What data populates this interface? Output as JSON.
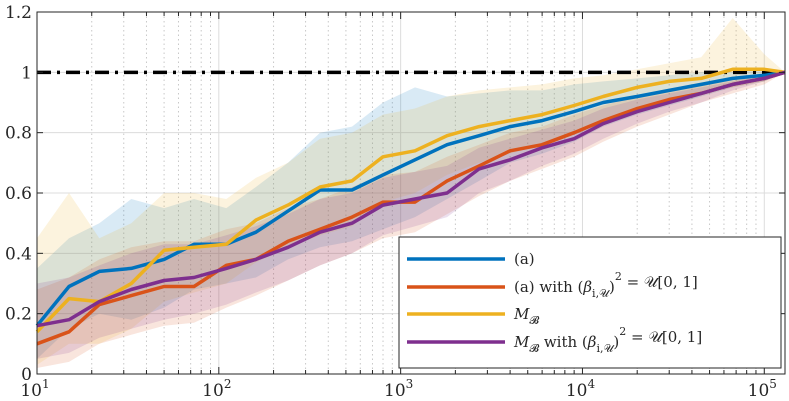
{
  "chart_data": {
    "type": "line",
    "title": "",
    "xlabel": "",
    "ylabel": "",
    "xscale": "log",
    "xlim": [
      10,
      130000
    ],
    "ylim": [
      0,
      1.2
    ],
    "grid": true,
    "legend_position": "bottom-right",
    "reference_line": {
      "y": 1,
      "style": "dash-dot",
      "color": "#000000"
    },
    "x_ticks": [
      {
        "value": 10,
        "base": "10",
        "exp": "1"
      },
      {
        "value": 100,
        "base": "10",
        "exp": "2"
      },
      {
        "value": 1000,
        "base": "10",
        "exp": "3"
      },
      {
        "value": 10000,
        "base": "10",
        "exp": "4"
      },
      {
        "value": 100000,
        "base": "10",
        "exp": "5"
      }
    ],
    "y_ticks": [
      {
        "value": 0,
        "label": "0"
      },
      {
        "value": 0.2,
        "label": "0.2"
      },
      {
        "value": 0.4,
        "label": "0.4"
      },
      {
        "value": 0.6,
        "label": "0.6"
      },
      {
        "value": 0.8,
        "label": "0.8"
      },
      {
        "value": 1,
        "label": "1"
      },
      {
        "value": 1.2,
        "label": "1.2"
      }
    ],
    "x": [
      10,
      15,
      22,
      33,
      50,
      73,
      110,
      160,
      240,
      360,
      540,
      800,
      1200,
      1800,
      2700,
      4000,
      6000,
      9000,
      13000,
      20000,
      30000,
      45000,
      67000,
      100000,
      130000
    ],
    "series": [
      {
        "name": "(a)",
        "legend_parts": [
          "(a)"
        ],
        "color": "#0072BD",
        "values": [
          0.16,
          0.29,
          0.34,
          0.35,
          0.38,
          0.43,
          0.43,
          0.47,
          0.54,
          0.61,
          0.61,
          0.66,
          0.71,
          0.76,
          0.79,
          0.82,
          0.84,
          0.87,
          0.9,
          0.92,
          0.94,
          0.96,
          0.98,
          0.99,
          1.0
        ],
        "upper": [
          0.35,
          0.45,
          0.5,
          0.58,
          0.55,
          0.58,
          0.55,
          0.62,
          0.7,
          0.8,
          0.82,
          0.9,
          0.95,
          0.92,
          0.93,
          0.94,
          0.94,
          0.96,
          0.97,
          0.98,
          0.99,
          1.0,
          1.0,
          1.01,
          1.0
        ],
        "lower": [
          0.05,
          0.15,
          0.2,
          0.18,
          0.22,
          0.28,
          0.3,
          0.32,
          0.38,
          0.42,
          0.44,
          0.48,
          0.52,
          0.58,
          0.64,
          0.7,
          0.73,
          0.77,
          0.82,
          0.86,
          0.89,
          0.92,
          0.95,
          0.97,
          1.0
        ]
      },
      {
        "name": "(a) with (β_{i,U})^2 = U[0,1]",
        "legend_parts": [
          "(a) with (",
          "β",
          "i,𝒰",
          ")",
          "2",
          " = 𝒰[0, 1]"
        ],
        "color": "#D95319",
        "values": [
          0.1,
          0.14,
          0.23,
          0.26,
          0.29,
          0.29,
          0.36,
          0.38,
          0.44,
          0.48,
          0.52,
          0.57,
          0.57,
          0.64,
          0.69,
          0.74,
          0.76,
          0.8,
          0.84,
          0.88,
          0.91,
          0.93,
          0.96,
          0.98,
          1.0
        ],
        "upper": [
          0.28,
          0.32,
          0.38,
          0.42,
          0.44,
          0.44,
          0.48,
          0.5,
          0.55,
          0.58,
          0.62,
          0.66,
          0.67,
          0.72,
          0.76,
          0.8,
          0.82,
          0.86,
          0.89,
          0.92,
          0.94,
          0.96,
          0.98,
          0.99,
          1.0
        ],
        "lower": [
          0.02,
          0.04,
          0.1,
          0.13,
          0.16,
          0.17,
          0.22,
          0.26,
          0.31,
          0.36,
          0.4,
          0.45,
          0.47,
          0.53,
          0.59,
          0.64,
          0.68,
          0.72,
          0.77,
          0.82,
          0.86,
          0.9,
          0.93,
          0.96,
          1.0
        ]
      },
      {
        "name": "M_B",
        "legend_parts": [
          "M",
          "𝓑"
        ],
        "color": "#EDB120",
        "values": [
          0.14,
          0.25,
          0.24,
          0.3,
          0.41,
          0.42,
          0.43,
          0.51,
          0.56,
          0.62,
          0.64,
          0.72,
          0.74,
          0.79,
          0.82,
          0.84,
          0.86,
          0.89,
          0.92,
          0.95,
          0.97,
          0.98,
          1.01,
          1.01,
          1.0
        ],
        "upper": [
          0.45,
          0.6,
          0.45,
          0.5,
          0.6,
          0.6,
          0.58,
          0.65,
          0.7,
          0.78,
          0.8,
          0.86,
          0.88,
          0.92,
          0.94,
          0.95,
          0.96,
          0.98,
          0.99,
          1.01,
          1.03,
          1.05,
          1.18,
          1.06,
          1.0
        ],
        "lower": [
          0.03,
          0.1,
          0.1,
          0.15,
          0.24,
          0.27,
          0.3,
          0.37,
          0.42,
          0.46,
          0.49,
          0.57,
          0.6,
          0.66,
          0.7,
          0.73,
          0.76,
          0.8,
          0.84,
          0.88,
          0.91,
          0.93,
          0.95,
          0.97,
          1.0
        ]
      },
      {
        "name": "M_B with (β_{i,U})^2 = U[0,1]",
        "legend_parts": [
          "M",
          "𝓑",
          " with (",
          "β",
          "i,𝒰",
          ")",
          "2",
          " = 𝒰[0, 1]"
        ],
        "color": "#7E2F8E",
        "values": [
          0.16,
          0.18,
          0.24,
          0.28,
          0.31,
          0.32,
          0.35,
          0.38,
          0.42,
          0.47,
          0.5,
          0.56,
          0.58,
          0.6,
          0.68,
          0.71,
          0.75,
          0.78,
          0.83,
          0.87,
          0.9,
          0.93,
          0.96,
          0.98,
          1.0
        ],
        "upper": [
          0.3,
          0.32,
          0.36,
          0.4,
          0.43,
          0.43,
          0.46,
          0.49,
          0.53,
          0.58,
          0.6,
          0.65,
          0.67,
          0.69,
          0.75,
          0.78,
          0.81,
          0.84,
          0.88,
          0.91,
          0.93,
          0.95,
          0.97,
          0.99,
          1.0
        ],
        "lower": [
          0.05,
          0.07,
          0.12,
          0.15,
          0.18,
          0.2,
          0.23,
          0.27,
          0.31,
          0.36,
          0.4,
          0.46,
          0.49,
          0.52,
          0.6,
          0.64,
          0.69,
          0.73,
          0.78,
          0.83,
          0.87,
          0.9,
          0.94,
          0.97,
          1.0
        ]
      }
    ]
  }
}
